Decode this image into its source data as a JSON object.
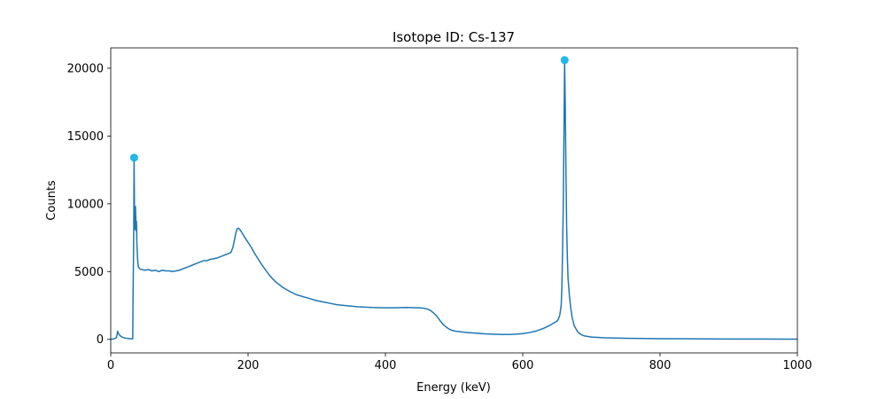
{
  "chart_data": {
    "type": "line",
    "title": "Isotope ID: Cs-137",
    "xlabel": "Energy (keV)",
    "ylabel": "Counts",
    "xlim": [
      0,
      1000
    ],
    "ylim": [
      -1000,
      21500
    ],
    "xticks": [
      0,
      200,
      400,
      600,
      800,
      1000
    ],
    "yticks": [
      0,
      5000,
      10000,
      15000,
      20000
    ],
    "grid": false,
    "series": [
      {
        "line_color": "#1f77b4",
        "points": [
          [
            0,
            0
          ],
          [
            5,
            40
          ],
          [
            8,
            120
          ],
          [
            9,
            300
          ],
          [
            10,
            600
          ],
          [
            11,
            450
          ],
          [
            13,
            300
          ],
          [
            16,
            180
          ],
          [
            20,
            100
          ],
          [
            25,
            60
          ],
          [
            30,
            40
          ],
          [
            32,
            40
          ],
          [
            32.5,
            3200
          ],
          [
            33,
            5500
          ],
          [
            33.5,
            8200
          ],
          [
            34,
            13400
          ],
          [
            34.5,
            10000
          ],
          [
            35,
            8100
          ],
          [
            36,
            9800
          ],
          [
            37,
            8000
          ],
          [
            37.5,
            8700
          ],
          [
            38,
            7200
          ],
          [
            39,
            6000
          ],
          [
            40,
            5400
          ],
          [
            42,
            5200
          ],
          [
            45,
            5150
          ],
          [
            50,
            5100
          ],
          [
            55,
            5150
          ],
          [
            60,
            5050
          ],
          [
            65,
            5100
          ],
          [
            70,
            5000
          ],
          [
            75,
            5100
          ],
          [
            80,
            5050
          ],
          [
            85,
            5050
          ],
          [
            90,
            5000
          ],
          [
            95,
            5050
          ],
          [
            100,
            5100
          ],
          [
            105,
            5200
          ],
          [
            110,
            5300
          ],
          [
            115,
            5400
          ],
          [
            120,
            5500
          ],
          [
            125,
            5600
          ],
          [
            130,
            5700
          ],
          [
            135,
            5800
          ],
          [
            140,
            5800
          ],
          [
            145,
            5900
          ],
          [
            150,
            5950
          ],
          [
            155,
            6000
          ],
          [
            160,
            6100
          ],
          [
            165,
            6200
          ],
          [
            170,
            6300
          ],
          [
            175,
            6400
          ],
          [
            178,
            6800
          ],
          [
            180,
            7300
          ],
          [
            182,
            7800
          ],
          [
            184,
            8150
          ],
          [
            186,
            8200
          ],
          [
            188,
            8100
          ],
          [
            190,
            7950
          ],
          [
            193,
            7700
          ],
          [
            196,
            7450
          ],
          [
            200,
            7150
          ],
          [
            205,
            6750
          ],
          [
            210,
            6300
          ],
          [
            215,
            5900
          ],
          [
            220,
            5500
          ],
          [
            225,
            5150
          ],
          [
            230,
            4800
          ],
          [
            235,
            4500
          ],
          [
            240,
            4250
          ],
          [
            245,
            4050
          ],
          [
            250,
            3850
          ],
          [
            255,
            3700
          ],
          [
            260,
            3550
          ],
          [
            270,
            3300
          ],
          [
            280,
            3150
          ],
          [
            290,
            3000
          ],
          [
            300,
            2850
          ],
          [
            310,
            2750
          ],
          [
            320,
            2650
          ],
          [
            330,
            2550
          ],
          [
            340,
            2500
          ],
          [
            350,
            2450
          ],
          [
            360,
            2400
          ],
          [
            370,
            2380
          ],
          [
            380,
            2350
          ],
          [
            390,
            2340
          ],
          [
            400,
            2330
          ],
          [
            410,
            2330
          ],
          [
            420,
            2340
          ],
          [
            430,
            2350
          ],
          [
            440,
            2340
          ],
          [
            450,
            2320
          ],
          [
            455,
            2300
          ],
          [
            460,
            2250
          ],
          [
            465,
            2150
          ],
          [
            470,
            1950
          ],
          [
            475,
            1700
          ],
          [
            480,
            1350
          ],
          [
            485,
            1050
          ],
          [
            490,
            850
          ],
          [
            495,
            700
          ],
          [
            500,
            620
          ],
          [
            510,
            550
          ],
          [
            520,
            500
          ],
          [
            530,
            460
          ],
          [
            540,
            420
          ],
          [
            550,
            390
          ],
          [
            560,
            370
          ],
          [
            570,
            360
          ],
          [
            580,
            360
          ],
          [
            590,
            380
          ],
          [
            600,
            420
          ],
          [
            610,
            500
          ],
          [
            620,
            620
          ],
          [
            630,
            800
          ],
          [
            640,
            1050
          ],
          [
            645,
            1200
          ],
          [
            650,
            1350
          ],
          [
            652,
            1500
          ],
          [
            654,
            1800
          ],
          [
            656,
            2500
          ],
          [
            657,
            3800
          ],
          [
            658,
            6500
          ],
          [
            659,
            9800
          ],
          [
            660,
            15000
          ],
          [
            661,
            20600
          ],
          [
            662,
            17000
          ],
          [
            663,
            12000
          ],
          [
            664,
            8200
          ],
          [
            665,
            6000
          ],
          [
            666,
            4500
          ],
          [
            668,
            3200
          ],
          [
            670,
            2300
          ],
          [
            672,
            1600
          ],
          [
            675,
            1000
          ],
          [
            680,
            550
          ],
          [
            685,
            350
          ],
          [
            690,
            250
          ],
          [
            700,
            170
          ],
          [
            720,
            110
          ],
          [
            750,
            80
          ],
          [
            800,
            50
          ],
          [
            850,
            35
          ],
          [
            900,
            25
          ],
          [
            950,
            20
          ],
          [
            1000,
            15
          ]
        ]
      }
    ],
    "peaks": [
      {
        "x": 34,
        "y": 13400
      },
      {
        "x": 661,
        "y": 20600
      }
    ],
    "peak_color": "#1fb8e8"
  }
}
